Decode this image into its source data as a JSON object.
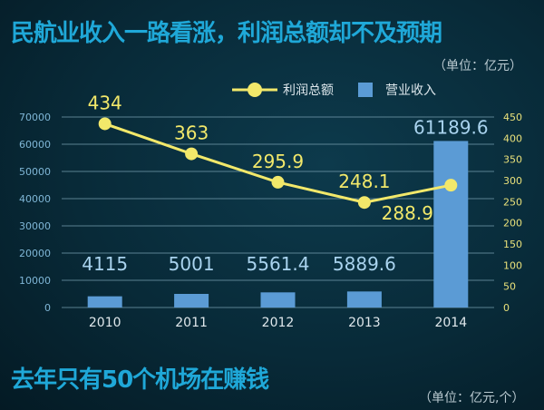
{
  "title": "民航业收入一路看涨，利润总额却不及预期",
  "unit1": "（单位：亿元）",
  "subtitle": "去年只有50个机场在赚钱",
  "unit2": "（单位：亿元,个）",
  "colors": {
    "bar": "#5b9bd5",
    "line": "#f2e86a",
    "axis_left": "#7fb6d6",
    "axis_right": "#e8e07a"
  },
  "chart_data": {
    "type": "bar",
    "categories": [
      "2010",
      "2011",
      "2012",
      "2013",
      "2014"
    ],
    "series": [
      {
        "name": "营业收入",
        "type": "bar",
        "axis": "left",
        "values": [
          4115,
          5001,
          5561.4,
          5889.6,
          61189.6
        ],
        "labels": [
          "4115",
          "5001",
          "5561.4",
          "5889.6",
          "61189.6"
        ]
      },
      {
        "name": "利润总额",
        "type": "line",
        "axis": "right",
        "values": [
          434,
          363,
          295.9,
          248.1,
          288.9
        ],
        "labels": [
          "434",
          "363",
          "295.9",
          "248.1",
          "288.9"
        ]
      }
    ],
    "y_left": {
      "range": [
        0,
        70000
      ],
      "ticks": [
        "0",
        "10000",
        "20000",
        "30000",
        "40000",
        "50000",
        "60000",
        "70000"
      ]
    },
    "y_right": {
      "range": [
        0,
        450
      ],
      "ticks": [
        "0",
        "50",
        "100",
        "150",
        "200",
        "250",
        "300",
        "350",
        "400",
        "450"
      ]
    },
    "grid": true,
    "legend": "top-right"
  }
}
